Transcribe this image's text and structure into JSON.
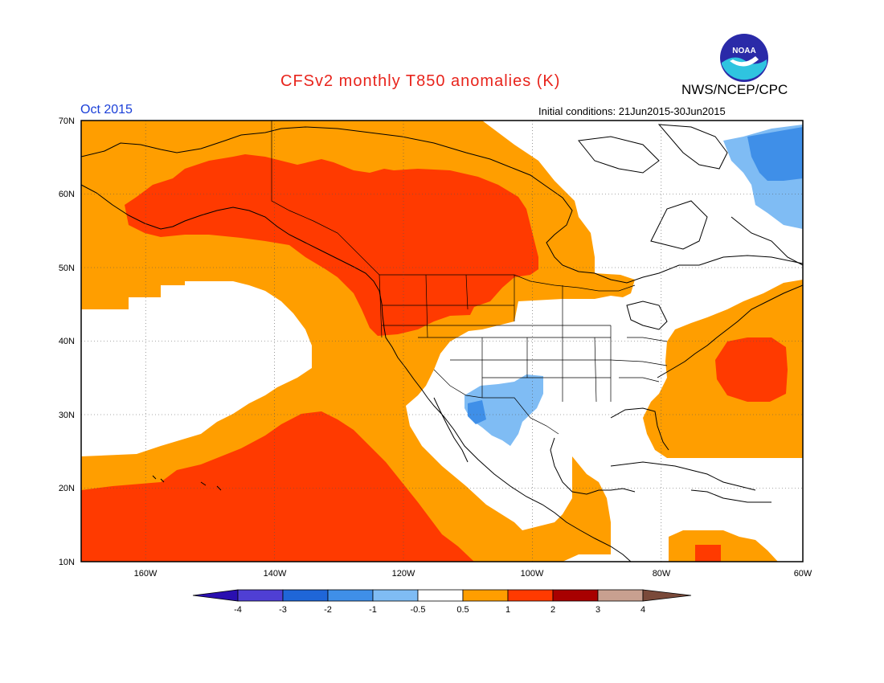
{
  "header": {
    "title": "CFSv2 monthly T850 anomalies (K)",
    "organization": "NWS/NCEP/CPC",
    "month": "Oct 2015",
    "initial_conditions": "Initial conditions: 21Jun2015-30Jun2015"
  },
  "logo": {
    "icon": "noaa-logo-icon",
    "text": "NOAA"
  },
  "map": {
    "projection": "cylindrical",
    "lon_range": [
      -172,
      -60
    ],
    "lat_range": [
      10,
      70
    ],
    "grid": true,
    "lat_labels": [
      "70N",
      "60N",
      "50N",
      "40N",
      "30N",
      "20N",
      "10N"
    ],
    "lon_labels": [
      "160W",
      "140W",
      "120W",
      "100W",
      "80W",
      "60W"
    ]
  },
  "legend": {
    "tick_labels": [
      "-4",
      "-3",
      "-2",
      "-1",
      "-0.5",
      "0.5",
      "1",
      "2",
      "3",
      "4"
    ],
    "colors": [
      "#2a0fb0",
      "#4f3fd4",
      "#1f66d8",
      "#3f8fe8",
      "#7fbcf4",
      "#ffffff",
      "#ff9e00",
      "#ff3a00",
      "#a80000",
      "#c8a090",
      "#7a4a3a"
    ]
  },
  "colors": {
    "title": "#e8241c",
    "month": "#1a3fd8",
    "anom_0_5_to_1": "#ff9e00",
    "anom_1_to_2": "#ff3a00",
    "anom_neg_0_5_to_neg_1": "#7fbcf4",
    "anom_neg_1_to_neg_2": "#3f8fe8"
  }
}
